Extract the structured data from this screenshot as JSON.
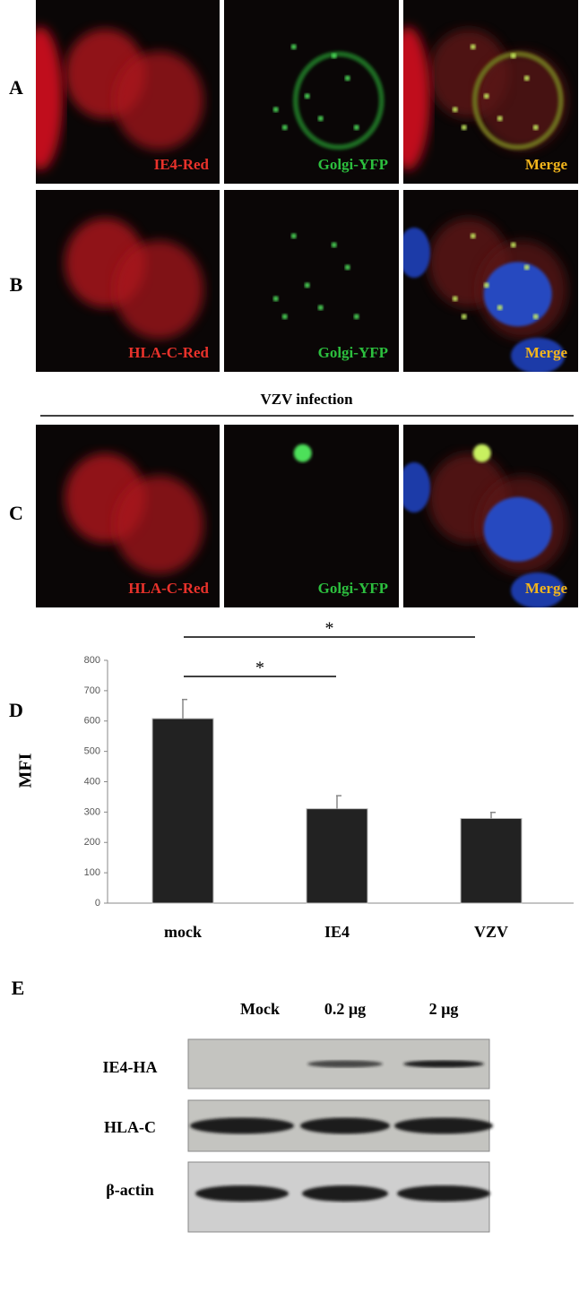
{
  "panels": [
    {
      "label": "A",
      "captions": [
        "IE4-Red",
        "Golgi-YFP",
        "Merge"
      ]
    },
    {
      "label": "B",
      "captions": [
        "HLA-C-Red",
        "Golgi-YFP",
        "Merge"
      ]
    },
    {
      "label": "C",
      "heading": "VZV infection",
      "captions": [
        "HLA-C-Red",
        "Golgi-YFP",
        "Merge"
      ]
    }
  ],
  "chart_data": {
    "type": "bar",
    "panel_label": "D",
    "y_label": "MFI",
    "categories": [
      "mock",
      "IE4",
      "VZV"
    ],
    "values": [
      608,
      311,
      279
    ],
    "errors": [
      63,
      43,
      20
    ],
    "color": "#222222",
    "ylim": [
      0,
      800
    ],
    "yticks": [
      0,
      100,
      200,
      300,
      400,
      500,
      600,
      700,
      800
    ],
    "significance_labels": [
      "*",
      "*"
    ]
  },
  "blot": {
    "label": "E",
    "lanes": [
      "Mock",
      "0.2 µg",
      "2 µg"
    ],
    "rows": [
      "IE4-HA",
      "HLA-C",
      "β-actin"
    ]
  }
}
